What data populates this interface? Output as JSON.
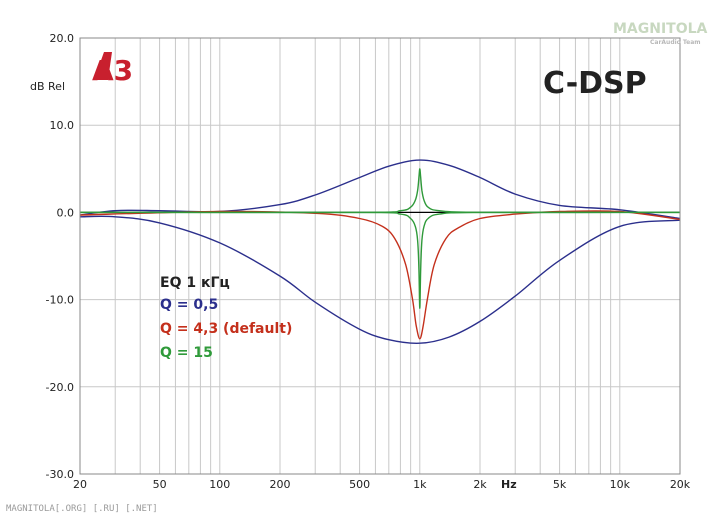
{
  "badge": "A3",
  "title": "C-DSP",
  "watermark": {
    "name": "MAGNITOLA",
    "sub": "CarAudio Team"
  },
  "footer": "MAGNITOLA[.ORG] [.RU] [.NET]",
  "colors": {
    "blue": "#2b2f8c",
    "red": "#c4301c",
    "green": "#2f9a3a",
    "badge": "#c8202e",
    "grid": "#c8c8c8",
    "zero": "#000000"
  },
  "chart_data": {
    "type": "line",
    "xlabel": "Hz",
    "ylabel": "dB Rel",
    "xscale": "log",
    "xlim": [
      20,
      20000
    ],
    "ylim": [
      -30,
      20
    ],
    "grid": true,
    "x_tick_labels": [
      "20",
      "50",
      "100",
      "200",
      "500",
      "1k",
      "2k",
      "5k",
      "10k",
      "20k"
    ],
    "y_tick_labels": [
      "20.0",
      "10.0",
      "0.0",
      "-10.0",
      "-20.0",
      "-30.0"
    ],
    "legend": {
      "title": "EQ 1 кГц",
      "entries": [
        "Q = 0,5",
        "Q = 4,3 (default)",
        "Q = 15"
      ]
    },
    "series": [
      {
        "name": "Q = 0,5",
        "color": "#2b2f8c",
        "x": [
          20,
          30,
          50,
          100,
          200,
          300,
          500,
          700,
          1000,
          1400,
          2000,
          3000,
          5000,
          10000,
          20000
        ],
        "y": [
          -0.3,
          0.2,
          0.2,
          0.1,
          0.9,
          2.0,
          4.0,
          5.3,
          6.0,
          5.4,
          4.0,
          2.1,
          0.8,
          0.3,
          -0.7
        ]
      },
      {
        "name": "Q = 0,5",
        "color": "#2b2f8c",
        "x": [
          20,
          30,
          50,
          100,
          200,
          300,
          500,
          700,
          1000,
          1400,
          2000,
          3000,
          5000,
          10000,
          20000
        ],
        "y": [
          -0.5,
          -0.5,
          -1.2,
          -3.5,
          -7.3,
          -10.3,
          -13.4,
          -14.6,
          -15.0,
          -14.3,
          -12.5,
          -9.6,
          -5.5,
          -1.6,
          -0.9
        ]
      },
      {
        "name": "Q = 4,3 (default)",
        "color": "#c4301c",
        "x": [
          20,
          100,
          300,
          500,
          650,
          750,
          850,
          920,
          960,
          1000,
          1040,
          1090,
          1180,
          1350,
          1550,
          2000,
          3000,
          5000,
          10000,
          20000
        ],
        "y": [
          -0.3,
          0.1,
          -0.1,
          -0.7,
          -1.6,
          -3.0,
          -6.0,
          -10.0,
          -13.0,
          -14.5,
          -13.0,
          -10.0,
          -6.0,
          -3.0,
          -1.8,
          -0.7,
          -0.2,
          0.1,
          0.1,
          -0.8
        ]
      },
      {
        "name": "Q = 15",
        "color": "#2f9a3a",
        "x": [
          20,
          500,
          800,
          900,
          950,
          975,
          990,
          1000,
          1010,
          1025,
          1050,
          1100,
          1250,
          2000,
          20000
        ],
        "y": [
          0.0,
          0.0,
          0.2,
          0.6,
          1.4,
          2.5,
          4.0,
          5.0,
          4.0,
          2.5,
          1.4,
          0.6,
          0.2,
          0.0,
          0.0
        ]
      },
      {
        "name": "Q = 15",
        "color": "#2f9a3a",
        "x": [
          20,
          500,
          800,
          900,
          950,
          975,
          990,
          1000,
          1010,
          1025,
          1050,
          1100,
          1250,
          2000,
          20000
        ],
        "y": [
          0.0,
          0.0,
          -0.2,
          -0.7,
          -1.6,
          -3.2,
          -6.5,
          -11.0,
          -6.5,
          -3.2,
          -1.6,
          -0.7,
          -0.2,
          0.0,
          0.0
        ]
      }
    ]
  }
}
